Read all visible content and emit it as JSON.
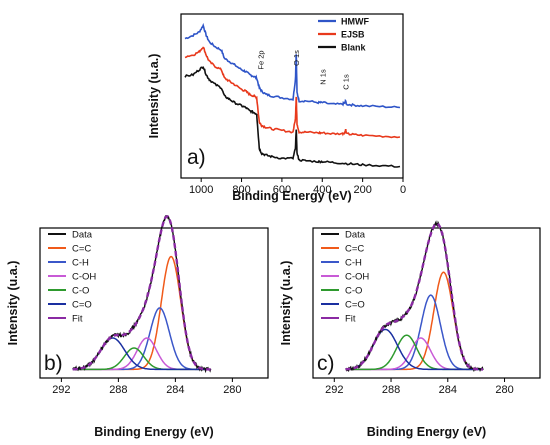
{
  "colors": {
    "axis": "#000000",
    "hmwf": "#2f55c8",
    "ejsb": "#e8391c",
    "blank": "#111111",
    "data": "#111111",
    "cc": "#f05a1a",
    "ch": "#3b57c9",
    "coh": "#c85ad6",
    "co": "#2e9a2e",
    "cdo": "#1a2fa0",
    "fit": "#8a2aa3"
  },
  "chart_data": [
    {
      "id": "a",
      "type": "line",
      "panel_label": "a)",
      "xlabel": "Binding Energy (eV)",
      "ylabel": "Intensity (u.a.)",
      "xlim": [
        1100,
        0
      ],
      "x_reversed": true,
      "x_ticks": [
        1000,
        800,
        600,
        400,
        200,
        0
      ],
      "y_ticks_shown": false,
      "legend_position": "top-right",
      "annotations": [
        {
          "text": "Fe 2p",
          "x": 706
        },
        {
          "text": "O 1s",
          "x": 530
        },
        {
          "text": "N 1s",
          "x": 400
        },
        {
          "text": "C 1s",
          "x": 285
        }
      ],
      "series": [
        {
          "name": "HMWF",
          "color_key": "hmwf",
          "points": [
            [
              1080,
              0.85
            ],
            [
              1040,
              0.87
            ],
            [
              1010,
              0.89
            ],
            [
              990,
              0.93
            ],
            [
              975,
              0.87
            ],
            [
              960,
              0.83
            ],
            [
              930,
              0.8
            ],
            [
              900,
              0.78
            ],
            [
              885,
              0.73
            ],
            [
              860,
              0.71
            ],
            [
              835,
              0.69
            ],
            [
              800,
              0.66
            ],
            [
              780,
              0.65
            ],
            [
              760,
              0.63
            ],
            [
              740,
              0.62
            ],
            [
              725,
              0.61
            ],
            [
              712,
              0.55
            ],
            [
              700,
              0.53
            ],
            [
              680,
              0.51
            ],
            [
              650,
              0.5
            ],
            [
              600,
              0.49
            ],
            [
              545,
              0.48
            ],
            [
              533,
              0.6
            ],
            [
              529,
              0.76
            ],
            [
              525,
              0.52
            ],
            [
              515,
              0.47
            ],
            [
              480,
              0.47
            ],
            [
              420,
              0.46
            ],
            [
              400,
              0.46
            ],
            [
              350,
              0.45
            ],
            [
              300,
              0.45
            ],
            [
              287,
              0.46
            ],
            [
              284,
              0.47
            ],
            [
              281,
              0.45
            ],
            [
              250,
              0.445
            ],
            [
              200,
              0.44
            ],
            [
              100,
              0.435
            ],
            [
              15,
              0.43
            ]
          ]
        },
        {
          "name": "EJSB",
          "color_key": "ejsb",
          "points": [
            [
              1080,
              0.74
            ],
            [
              1040,
              0.75
            ],
            [
              1010,
              0.77
            ],
            [
              990,
              0.8
            ],
            [
              975,
              0.75
            ],
            [
              960,
              0.71
            ],
            [
              930,
              0.68
            ],
            [
              900,
              0.66
            ],
            [
              885,
              0.61
            ],
            [
              860,
              0.59
            ],
            [
              835,
              0.57
            ],
            [
              800,
              0.54
            ],
            [
              780,
              0.53
            ],
            [
              760,
              0.51
            ],
            [
              740,
              0.5
            ],
            [
              725,
              0.49
            ],
            [
              712,
              0.34
            ],
            [
              700,
              0.32
            ],
            [
              680,
              0.31
            ],
            [
              650,
              0.3
            ],
            [
              600,
              0.29
            ],
            [
              545,
              0.28
            ],
            [
              533,
              0.36
            ],
            [
              529,
              0.5
            ],
            [
              525,
              0.33
            ],
            [
              515,
              0.28
            ],
            [
              480,
              0.28
            ],
            [
              420,
              0.275
            ],
            [
              400,
              0.275
            ],
            [
              350,
              0.27
            ],
            [
              300,
              0.27
            ],
            [
              287,
              0.28
            ],
            [
              284,
              0.3
            ],
            [
              281,
              0.27
            ],
            [
              250,
              0.265
            ],
            [
              200,
              0.26
            ],
            [
              100,
              0.255
            ],
            [
              15,
              0.25
            ]
          ]
        },
        {
          "name": "Blank",
          "color_key": "blank",
          "points": [
            [
              1080,
              0.62
            ],
            [
              1040,
              0.63
            ],
            [
              1010,
              0.66
            ],
            [
              990,
              0.68
            ],
            [
              975,
              0.63
            ],
            [
              960,
              0.6
            ],
            [
              930,
              0.57
            ],
            [
              900,
              0.55
            ],
            [
              885,
              0.5
            ],
            [
              860,
              0.48
            ],
            [
              835,
              0.46
            ],
            [
              800,
              0.44
            ],
            [
              780,
              0.43
            ],
            [
              760,
              0.41
            ],
            [
              740,
              0.4
            ],
            [
              725,
              0.39
            ],
            [
              712,
              0.18
            ],
            [
              700,
              0.15
            ],
            [
              680,
              0.14
            ],
            [
              650,
              0.13
            ],
            [
              600,
              0.12
            ],
            [
              545,
              0.12
            ],
            [
              533,
              0.18
            ],
            [
              529,
              0.3
            ],
            [
              525,
              0.15
            ],
            [
              515,
              0.11
            ],
            [
              480,
              0.105
            ],
            [
              420,
              0.1
            ],
            [
              400,
              0.1
            ],
            [
              350,
              0.095
            ],
            [
              300,
              0.09
            ],
            [
              250,
              0.085
            ],
            [
              200,
              0.08
            ],
            [
              100,
              0.075
            ],
            [
              15,
              0.07
            ]
          ]
        }
      ]
    },
    {
      "id": "b",
      "type": "line",
      "panel_label": "b)",
      "xlabel": "Binding Energy (eV)",
      "ylabel": "Intensity (u.a.)",
      "xlim": [
        293.5,
        277.5
      ],
      "x_reversed": true,
      "x_ticks": [
        292,
        288,
        284,
        280
      ],
      "ylim": [
        0,
        1.05
      ],
      "y_ticks_shown": false,
      "legend_position": "top-left",
      "data_noise": 0.012,
      "data_range": [
        291.2,
        281.5
      ],
      "components": [
        {
          "name": "C=C",
          "color_key": "cc",
          "center": 284.3,
          "amplitude": 0.79,
          "fwhm": 1.6
        },
        {
          "name": "C-H",
          "color_key": "ch",
          "center": 285.1,
          "amplitude": 0.43,
          "fwhm": 1.6
        },
        {
          "name": "C-OH",
          "color_key": "coh",
          "center": 286.0,
          "amplitude": 0.22,
          "fwhm": 1.6
        },
        {
          "name": "C-O",
          "color_key": "co",
          "center": 286.9,
          "amplitude": 0.15,
          "fwhm": 1.6
        },
        {
          "name": "C=O",
          "color_key": "cdo",
          "center": 288.4,
          "amplitude": 0.22,
          "fwhm": 2.0
        }
      ],
      "legend": [
        "Data",
        "C=C",
        "C-H",
        "C-OH",
        "C-O",
        "C=O",
        "Fit"
      ]
    },
    {
      "id": "c",
      "type": "line",
      "panel_label": "c)",
      "xlabel": "Binding Energy (eV)",
      "ylabel": "Intensity (u.a.)",
      "xlim": [
        293.5,
        277.5
      ],
      "x_reversed": true,
      "x_ticks": [
        292,
        288,
        284,
        280
      ],
      "ylim": [
        0,
        1.05
      ],
      "y_ticks_shown": false,
      "legend_position": "top-left",
      "data_noise": 0.012,
      "data_range": [
        291.2,
        281.5
      ],
      "components": [
        {
          "name": "C=C",
          "color_key": "cc",
          "center": 284.3,
          "amplitude": 0.68,
          "fwhm": 1.6
        },
        {
          "name": "C-H",
          "color_key": "ch",
          "center": 285.2,
          "amplitude": 0.52,
          "fwhm": 1.6
        },
        {
          "name": "C-OH",
          "color_key": "coh",
          "center": 285.9,
          "amplitude": 0.22,
          "fwhm": 1.6
        },
        {
          "name": "C-O",
          "color_key": "co",
          "center": 286.9,
          "amplitude": 0.24,
          "fwhm": 1.7
        },
        {
          "name": "C=O",
          "color_key": "cdo",
          "center": 288.4,
          "amplitude": 0.28,
          "fwhm": 2.0
        }
      ],
      "legend": [
        "Data",
        "C=C",
        "C-H",
        "C-OH",
        "C-O",
        "C=O",
        "Fit"
      ]
    }
  ]
}
